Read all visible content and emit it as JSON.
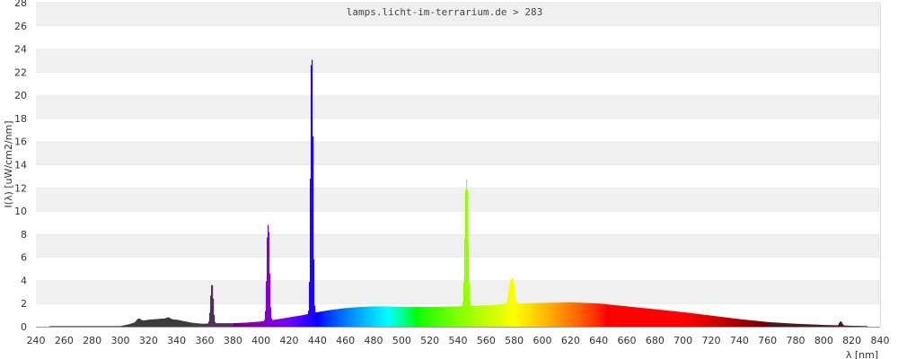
{
  "chart_data": {
    "type": "area",
    "title": "lamps.licht-im-terrarium.de > 283",
    "xlabel": "λ [nm]",
    "ylabel": "I(λ) [uW/cm2/nm]",
    "xlim": [
      240,
      840
    ],
    "ylim": [
      0,
      28
    ],
    "x_ticks": [
      240,
      260,
      280,
      300,
      320,
      340,
      360,
      380,
      400,
      420,
      440,
      460,
      480,
      500,
      520,
      540,
      560,
      580,
      600,
      620,
      640,
      660,
      680,
      700,
      720,
      740,
      760,
      780,
      800,
      820,
      840
    ],
    "y_ticks": [
      0,
      2,
      4,
      6,
      8,
      10,
      12,
      14,
      16,
      18,
      20,
      22,
      24,
      26,
      28
    ],
    "grid": "horizontal bands",
    "x_range_data": [
      250,
      830
    ],
    "continuum": [
      [
        250,
        0.05
      ],
      [
        300,
        0.05
      ],
      [
        306,
        0.2
      ],
      [
        310,
        0.35
      ],
      [
        315,
        0.5
      ],
      [
        320,
        0.6
      ],
      [
        330,
        0.7
      ],
      [
        340,
        0.6
      ],
      [
        350,
        0.35
      ],
      [
        358,
        0.25
      ],
      [
        370,
        0.3
      ],
      [
        380,
        0.3
      ],
      [
        390,
        0.35
      ],
      [
        400,
        0.45
      ],
      [
        410,
        0.6
      ],
      [
        420,
        0.8
      ],
      [
        430,
        1.0
      ],
      [
        440,
        1.25
      ],
      [
        450,
        1.45
      ],
      [
        460,
        1.6
      ],
      [
        470,
        1.7
      ],
      [
        480,
        1.75
      ],
      [
        490,
        1.75
      ],
      [
        500,
        1.7
      ],
      [
        520,
        1.7
      ],
      [
        540,
        1.75
      ],
      [
        560,
        1.85
      ],
      [
        580,
        2.0
      ],
      [
        600,
        2.05
      ],
      [
        620,
        2.1
      ],
      [
        640,
        2.0
      ],
      [
        660,
        1.75
      ],
      [
        680,
        1.5
      ],
      [
        700,
        1.25
      ],
      [
        720,
        0.95
      ],
      [
        740,
        0.65
      ],
      [
        760,
        0.4
      ],
      [
        780,
        0.25
      ],
      [
        800,
        0.15
      ],
      [
        820,
        0.08
      ],
      [
        830,
        0.05
      ]
    ],
    "peaks": [
      {
        "x": 313,
        "y": 0.7,
        "width": 1.2
      },
      {
        "x": 334,
        "y": 0.8,
        "width": 1.2
      },
      {
        "x": 365,
        "y": 3.6,
        "width": 0.8
      },
      {
        "x": 405,
        "y": 8.8,
        "width": 0.8
      },
      {
        "x": 436,
        "y": 23.1,
        "width": 0.7
      },
      {
        "x": 546,
        "y": 12.7,
        "width": 0.9
      },
      {
        "x": 577,
        "y": 3.6,
        "width": 1.0
      },
      {
        "x": 579,
        "y": 3.9,
        "width": 1.0
      },
      {
        "x": 812,
        "y": 0.45,
        "width": 0.8
      }
    ]
  }
}
